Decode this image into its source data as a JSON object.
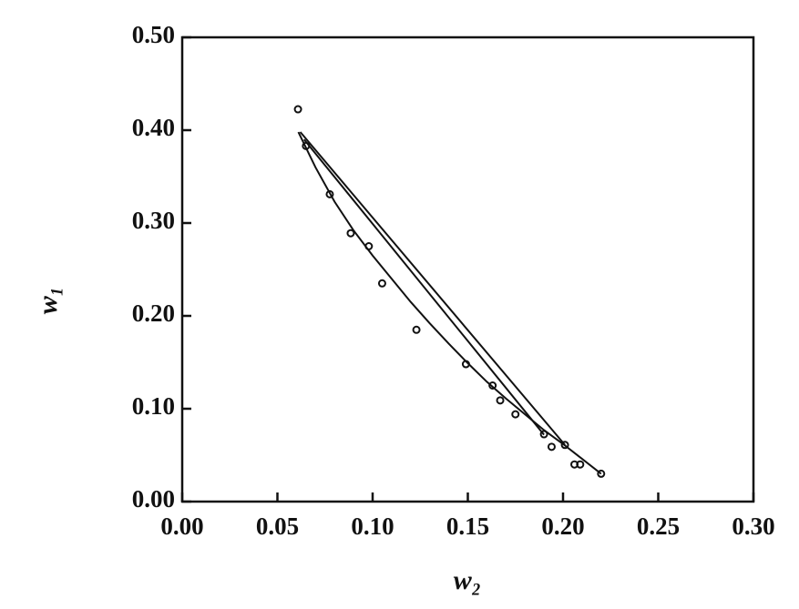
{
  "chart_data": {
    "type": "scatter",
    "x_label": "w₂",
    "y_label": "w₁",
    "xlim": [
      0,
      0.3
    ],
    "ylim": [
      0,
      0.5
    ],
    "xticks": [
      {
        "value": 0,
        "label": "0.00"
      },
      0.05,
      {
        "value": 0.1,
        "label": "0.10"
      },
      0.15,
      {
        "value": 0.2,
        "label": "0.20"
      },
      0.25,
      {
        "value": 0.3,
        "label": "0.30"
      }
    ],
    "yticks": [
      {
        "value": 0,
        "label": "0.00"
      },
      {
        "value": 0.1,
        "label": "0.10"
      },
      {
        "value": 0.2,
        "label": "0.20"
      },
      {
        "value": 0.3,
        "label": "0.30"
      },
      {
        "value": 0.4,
        "label": "0.40"
      },
      {
        "value": 0.5,
        "label": "0.50"
      }
    ],
    "series": [
      {
        "style": "markers",
        "color": "#111111",
        "x": [
          0.0608,
          0.065,
          0.0775,
          0.0885,
          0.098,
          0.105,
          0.123,
          0.149,
          0.163,
          0.167,
          0.175,
          0.19,
          0.194,
          0.201,
          0.206,
          0.209,
          0.22
        ],
        "values": [
          0.4225,
          0.383,
          0.331,
          0.289,
          0.275,
          0.235,
          0.185,
          0.148,
          0.125,
          0.109,
          0.094,
          0.0725,
          0.059,
          0.061,
          0.04,
          0.04,
          0.03
        ]
      },
      {
        "style": "line",
        "color": "#111111",
        "x": [
          0.061,
          0.07,
          0.08,
          0.09,
          0.1,
          0.11,
          0.12,
          0.13,
          0.14,
          0.15,
          0.16,
          0.17,
          0.18,
          0.19,
          0.2,
          0.21,
          0.22
        ],
        "values": [
          0.398,
          0.36,
          0.323,
          0.292,
          0.265,
          0.24,
          0.215,
          0.192,
          0.17,
          0.149,
          0.129,
          0.111,
          0.094,
          0.077,
          0.062,
          0.046,
          0.03
        ]
      },
      {
        "style": "line",
        "color": "#111111",
        "x": [
          0.062,
          0.201
        ],
        "values": [
          0.398,
          0.061
        ]
      },
      {
        "style": "line",
        "color": "#111111",
        "x": [
          0.064,
          0.19
        ],
        "values": [
          0.39,
          0.072
        ]
      }
    ]
  }
}
